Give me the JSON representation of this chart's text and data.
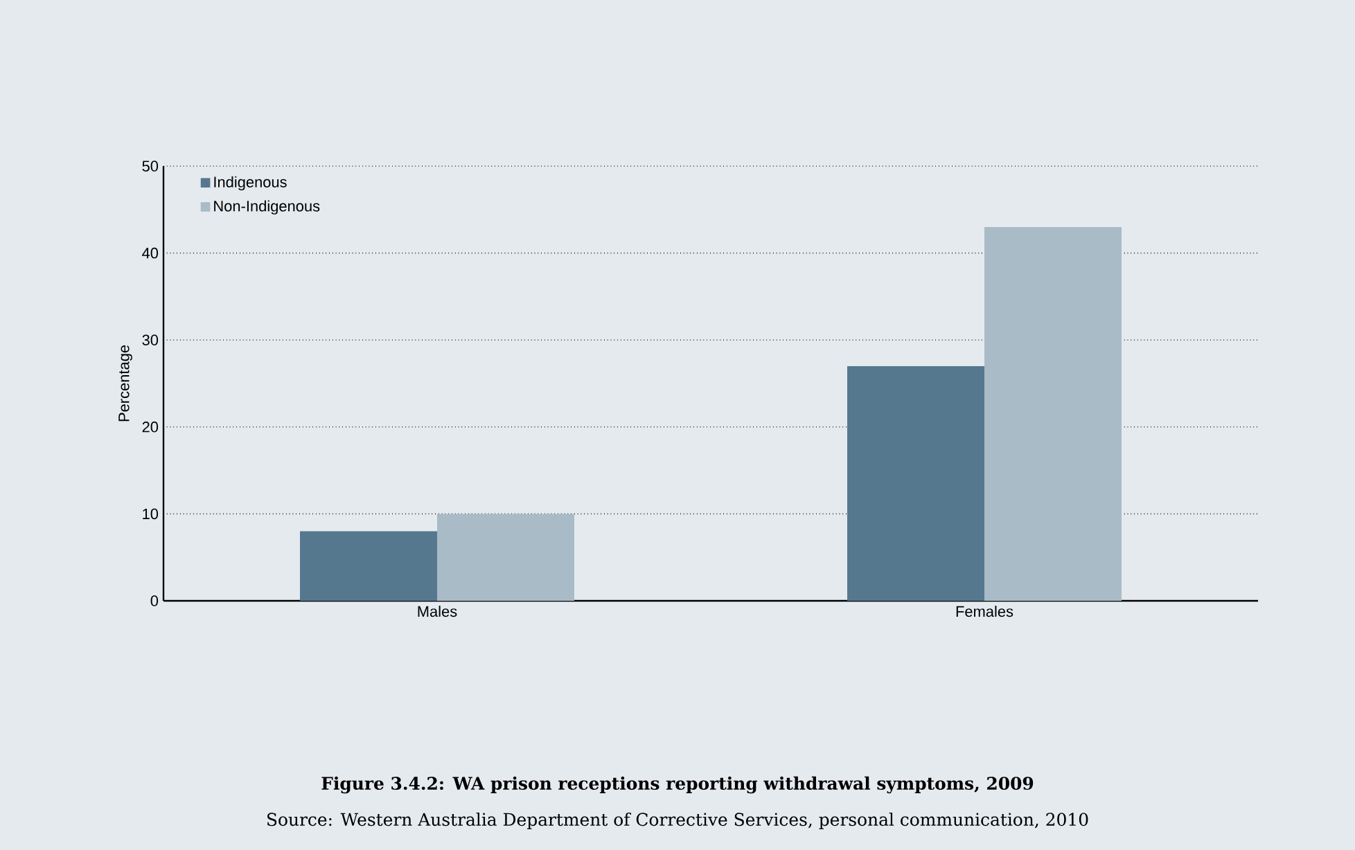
{
  "chart_data": {
    "type": "bar",
    "title": "Figure 3.4.2: WA prison receptions reporting withdrawal symptoms, 2009",
    "annotations": [
      "Source: Western Australia Department of Corrective Services, personal communication, 2010"
    ],
    "ylabel": "Percentage",
    "categories": [
      "Males",
      "Females"
    ],
    "series": [
      {
        "name": "Indigenous",
        "color": "#55788f",
        "values": [
          8,
          27
        ]
      },
      {
        "name": "Non-Indigenous",
        "color": "#a9bbc7",
        "values": [
          10,
          43
        ]
      }
    ],
    "ylim": [
      0,
      50
    ],
    "yticks": [
      0,
      10,
      20,
      30,
      40,
      50
    ],
    "grid": "y",
    "legend": "top left"
  }
}
